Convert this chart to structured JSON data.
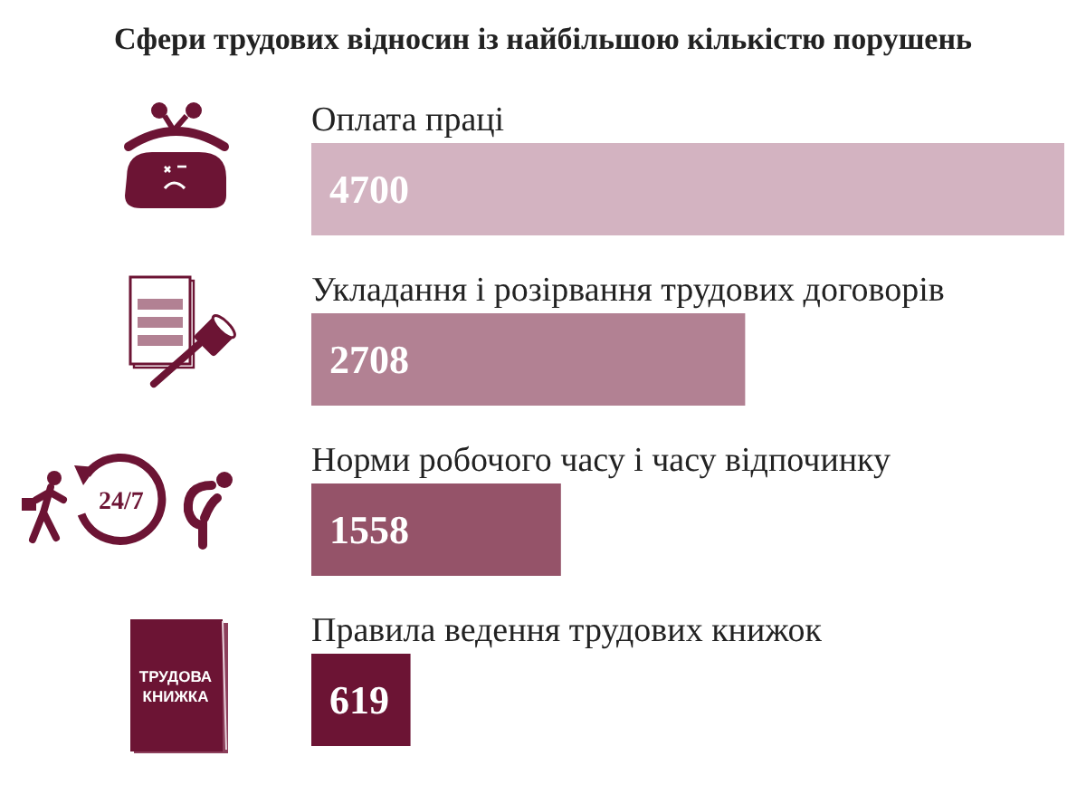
{
  "chart_data": {
    "type": "bar",
    "orientation": "horizontal",
    "title": "Сфери трудових відносин із найбільшою кількістю порушень",
    "categories": [
      "Оплата праці",
      "Укладання і розірвання трудових договорів",
      "Норми робочого часу і часу відпочинку",
      "Правила ведення трудових книжок"
    ],
    "values": [
      4700,
      2708,
      1558,
      619
    ],
    "colors": [
      "#d3b3c1",
      "#b28193",
      "#955369",
      "#6c1434"
    ],
    "data_labels": true,
    "annotations": [
      "24/7",
      "ТРУДОВА КНИЖКА"
    ]
  }
}
